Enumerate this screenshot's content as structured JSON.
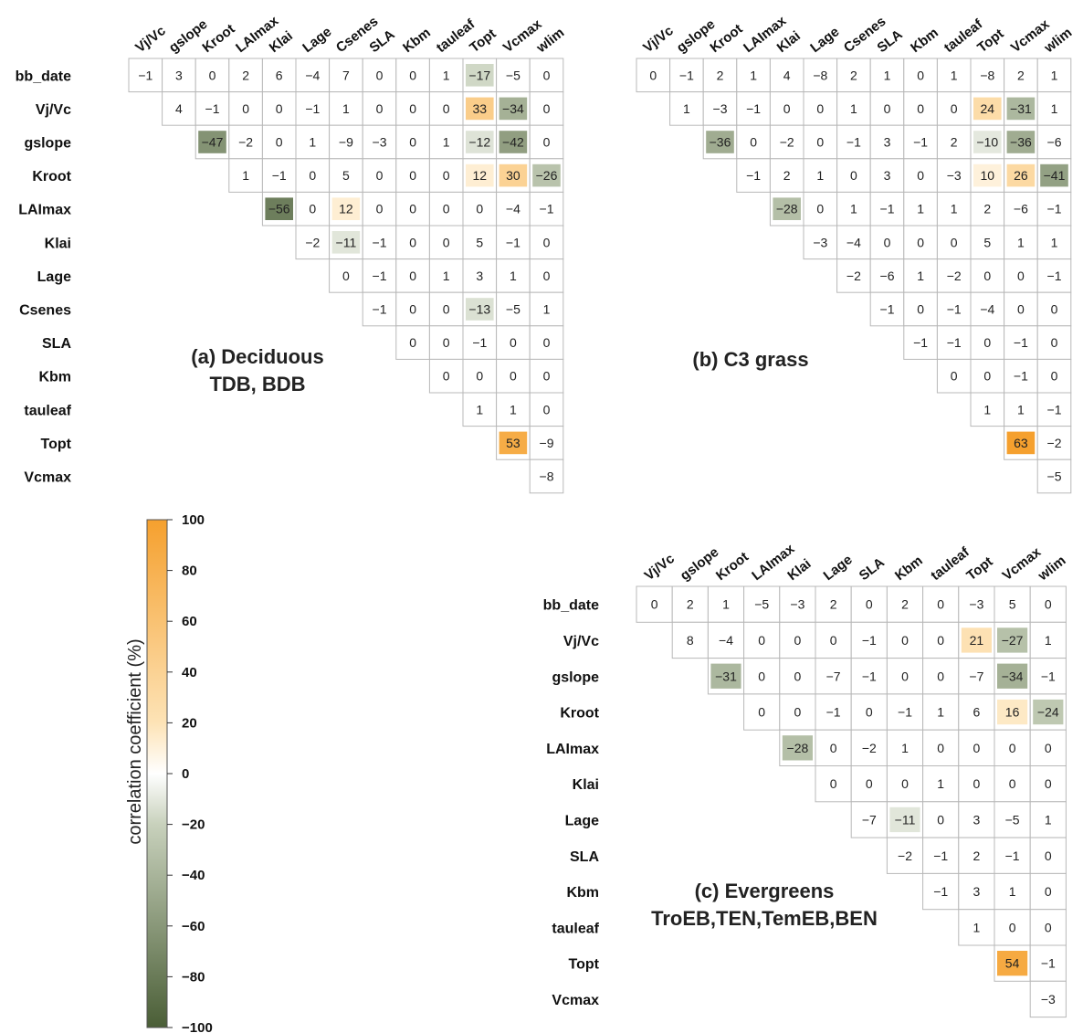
{
  "chart_data": [
    {
      "type": "heatmap",
      "title": [
        "(a) Deciduous",
        "TDB, BDB"
      ],
      "columns": [
        "Vj/Vc",
        "gslope",
        "Kroot",
        "LAImax",
        "Klai",
        "Lage",
        "Csenes",
        "SLA",
        "Kbm",
        "tauleaf",
        "Topt",
        "Vcmax",
        "wlim"
      ],
      "rows": [
        "bb_date",
        "Vj/Vc",
        "gslope",
        "Kroot",
        "LAImax",
        "Klai",
        "Lage",
        "Csenes",
        "SLA",
        "Kbm",
        "tauleaf",
        "Topt",
        "Vcmax"
      ],
      "values": [
        [
          -1,
          3,
          0,
          2,
          6,
          -4,
          7,
          0,
          0,
          1,
          -17,
          -5,
          0
        ],
        [
          null,
          4,
          -1,
          0,
          0,
          -1,
          1,
          0,
          0,
          0,
          33,
          -34,
          0
        ],
        [
          null,
          null,
          -47,
          -2,
          0,
          1,
          -9,
          -3,
          0,
          1,
          -12,
          -42,
          0
        ],
        [
          null,
          null,
          null,
          1,
          -1,
          0,
          5,
          0,
          0,
          0,
          12,
          30,
          -26
        ],
        [
          null,
          null,
          null,
          null,
          -56,
          0,
          12,
          0,
          0,
          0,
          0,
          -4,
          -1
        ],
        [
          null,
          null,
          null,
          null,
          null,
          -2,
          -11,
          -1,
          0,
          0,
          5,
          -1,
          0
        ],
        [
          null,
          null,
          null,
          null,
          null,
          null,
          0,
          -1,
          0,
          1,
          3,
          1,
          0
        ],
        [
          null,
          null,
          null,
          null,
          null,
          null,
          null,
          -1,
          0,
          0,
          -13,
          -5,
          1
        ],
        [
          null,
          null,
          null,
          null,
          null,
          null,
          null,
          null,
          0,
          0,
          -1,
          0,
          0
        ],
        [
          null,
          null,
          null,
          null,
          null,
          null,
          null,
          null,
          null,
          0,
          0,
          0,
          0
        ],
        [
          null,
          null,
          null,
          null,
          null,
          null,
          null,
          null,
          null,
          null,
          1,
          1,
          0
        ],
        [
          null,
          null,
          null,
          null,
          null,
          null,
          null,
          null,
          null,
          null,
          null,
          53,
          -9
        ],
        [
          null,
          null,
          null,
          null,
          null,
          null,
          null,
          null,
          null,
          null,
          null,
          null,
          -8
        ]
      ]
    },
    {
      "type": "heatmap",
      "title": [
        "(b) C3 grass"
      ],
      "columns": [
        "Vj/Vc",
        "gslope",
        "Kroot",
        "LAImax",
        "Klai",
        "Lage",
        "Csenes",
        "SLA",
        "Kbm",
        "tauleaf",
        "Topt",
        "Vcmax",
        "wlim"
      ],
      "rows": [],
      "values": [
        [
          0,
          -1,
          2,
          1,
          4,
          -8,
          2,
          1,
          0,
          1,
          -8,
          2,
          1
        ],
        [
          null,
          1,
          -3,
          -1,
          0,
          0,
          1,
          0,
          0,
          0,
          24,
          -31,
          1
        ],
        [
          null,
          null,
          -36,
          0,
          -2,
          0,
          -1,
          3,
          -1,
          2,
          -10,
          -36,
          -6
        ],
        [
          null,
          null,
          null,
          -1,
          2,
          1,
          0,
          3,
          0,
          -3,
          10,
          26,
          -41
        ],
        [
          null,
          null,
          null,
          null,
          -28,
          0,
          1,
          -1,
          1,
          1,
          2,
          -6,
          -1
        ],
        [
          null,
          null,
          null,
          null,
          null,
          -3,
          -4,
          0,
          0,
          0,
          5,
          1,
          1
        ],
        [
          null,
          null,
          null,
          null,
          null,
          null,
          -2,
          -6,
          1,
          -2,
          0,
          0,
          -1
        ],
        [
          null,
          null,
          null,
          null,
          null,
          null,
          null,
          -1,
          0,
          -1,
          -4,
          0,
          0
        ],
        [
          null,
          null,
          null,
          null,
          null,
          null,
          null,
          null,
          -1,
          -1,
          0,
          -1,
          0
        ],
        [
          null,
          null,
          null,
          null,
          null,
          null,
          null,
          null,
          null,
          0,
          0,
          -1,
          0
        ],
        [
          null,
          null,
          null,
          null,
          null,
          null,
          null,
          null,
          null,
          null,
          1,
          1,
          -1
        ],
        [
          null,
          null,
          null,
          null,
          null,
          null,
          null,
          null,
          null,
          null,
          null,
          63,
          -2
        ],
        [
          null,
          null,
          null,
          null,
          null,
          null,
          null,
          null,
          null,
          null,
          null,
          null,
          -5
        ]
      ]
    },
    {
      "type": "heatmap",
      "title": [
        "(c) Evergreens",
        "TroEB,TEN,TemEB,BEN"
      ],
      "columns": [
        "Vj/Vc",
        "gslope",
        "Kroot",
        "LAImax",
        "Klai",
        "Lage",
        "SLA",
        "Kbm",
        "tauleaf",
        "Topt",
        "Vcmax",
        "wlim"
      ],
      "rows": [
        "bb_date",
        "Vj/Vc",
        "gslope",
        "Kroot",
        "LAImax",
        "Klai",
        "Lage",
        "SLA",
        "Kbm",
        "tauleaf",
        "Topt",
        "Vcmax"
      ],
      "values": [
        [
          0,
          2,
          1,
          -5,
          -3,
          2,
          0,
          2,
          0,
          -3,
          5,
          0
        ],
        [
          null,
          8,
          -4,
          0,
          0,
          0,
          -1,
          0,
          0,
          21,
          -27,
          1
        ],
        [
          null,
          null,
          -31,
          0,
          0,
          -7,
          -1,
          0,
          0,
          -7,
          -34,
          -1
        ],
        [
          null,
          null,
          null,
          0,
          0,
          -1,
          0,
          -1,
          1,
          6,
          16,
          -24
        ],
        [
          null,
          null,
          null,
          null,
          -28,
          0,
          -2,
          1,
          0,
          0,
          0,
          0
        ],
        [
          null,
          null,
          null,
          null,
          null,
          0,
          0,
          0,
          1,
          0,
          0,
          0
        ],
        [
          null,
          null,
          null,
          null,
          null,
          null,
          -7,
          -11,
          0,
          3,
          -5,
          1
        ],
        [
          null,
          null,
          null,
          null,
          null,
          null,
          null,
          -2,
          -1,
          2,
          -1,
          0
        ],
        [
          null,
          null,
          null,
          null,
          null,
          null,
          null,
          null,
          -1,
          3,
          1,
          0
        ],
        [
          null,
          null,
          null,
          null,
          null,
          null,
          null,
          null,
          null,
          1,
          0,
          0
        ],
        [
          null,
          null,
          null,
          null,
          null,
          null,
          null,
          null,
          null,
          null,
          54,
          -1
        ],
        [
          null,
          null,
          null,
          null,
          null,
          null,
          null,
          null,
          null,
          null,
          null,
          -3
        ]
      ]
    }
  ],
  "colorbar": {
    "title": "correlation coefficient (%)",
    "range": [
      -100,
      100
    ],
    "ticks": [
      100,
      80,
      60,
      40,
      20,
      0,
      -20,
      -40,
      -60,
      -80,
      -100
    ],
    "colors": {
      "neg_end": "#4a5e36",
      "neg_mid": "#c8d1bc",
      "zero": "#ffffff",
      "pos_mid": "#fde3b6",
      "pos_end": "#f5a02e"
    }
  }
}
